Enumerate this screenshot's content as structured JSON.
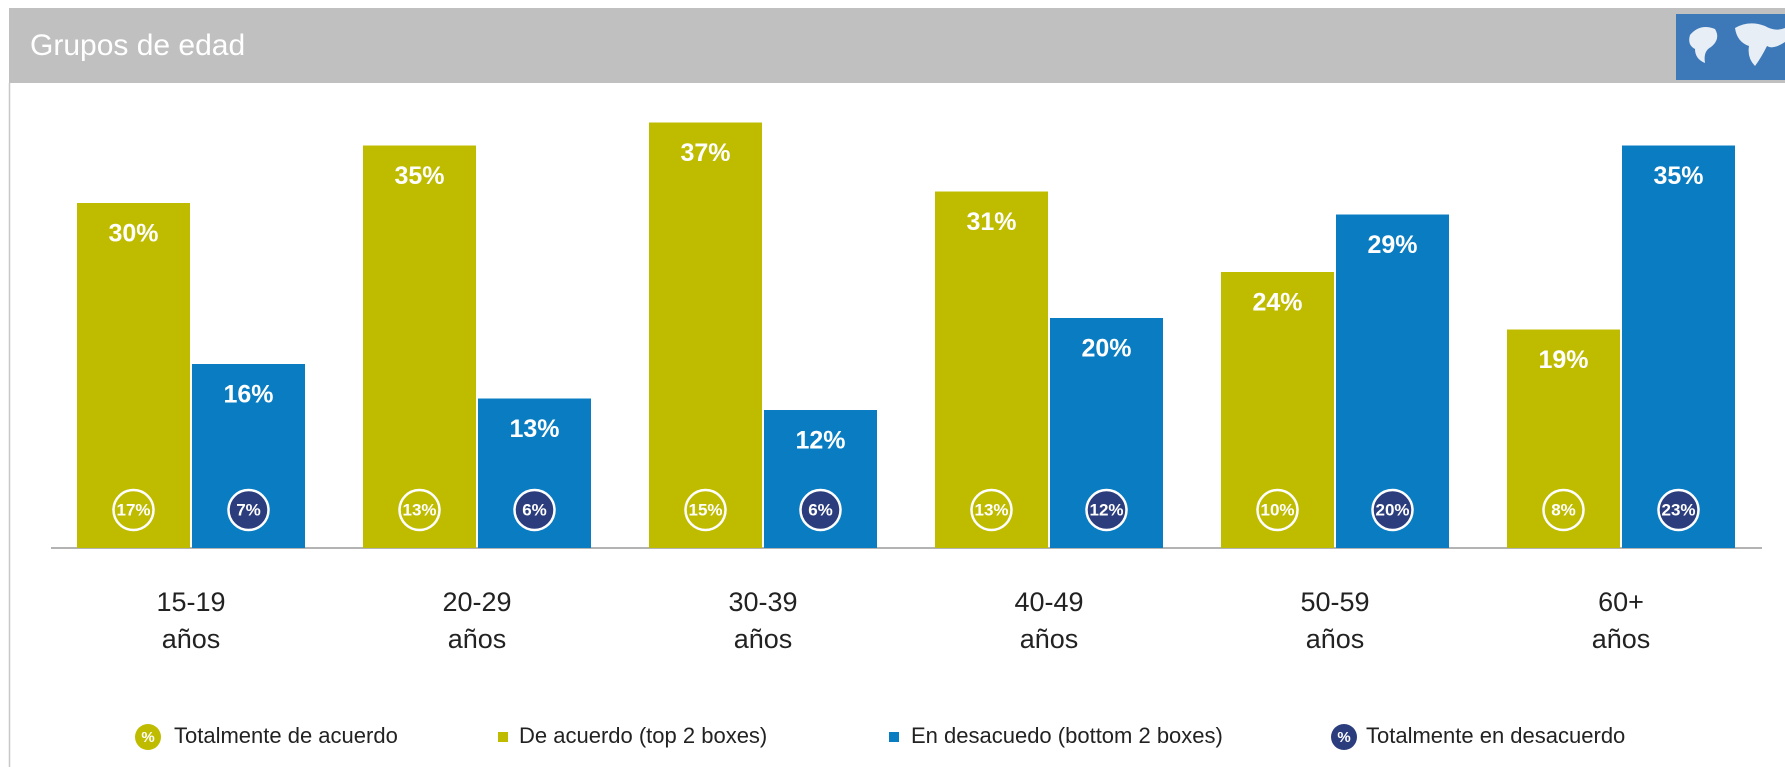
{
  "chart_data": {
    "type": "bar",
    "title": "Grupos de edad",
    "categories": [
      "15-19 años",
      "20-29 años",
      "30-39 años",
      "40-49 años",
      "50-59 años",
      "60+ años"
    ],
    "legend_symbol": "%",
    "series": [
      {
        "name": "Totalmente de acuerdo",
        "style": "circle",
        "color": "#bfbc00",
        "values": [
          17,
          13,
          15,
          13,
          10,
          8
        ],
        "value_labels": [
          "17%",
          "13%",
          "15%",
          "13%",
          "10%",
          "8%"
        ]
      },
      {
        "name": "De acuerdo (top 2 boxes)",
        "style": "bar",
        "color": "#bfbc00",
        "values": [
          30,
          35,
          37,
          31,
          24,
          19
        ],
        "value_labels": [
          "30%",
          "35%",
          "37%",
          "31%",
          "24%",
          "19%"
        ]
      },
      {
        "name": "En desacuedo (bottom 2 boxes)",
        "style": "bar",
        "color": "#0a7dc2",
        "values": [
          16,
          13,
          12,
          20,
          29,
          35
        ],
        "value_labels": [
          "16%",
          "13%",
          "12%",
          "20%",
          "29%",
          "35%"
        ]
      },
      {
        "name": "Totalmente en desacuerdo",
        "style": "circle",
        "color": "#2b3d7d",
        "values": [
          7,
          6,
          6,
          12,
          20,
          23
        ],
        "value_labels": [
          "7%",
          "6%",
          "6%",
          "12%",
          "20%",
          "23%"
        ]
      }
    ]
  }
}
